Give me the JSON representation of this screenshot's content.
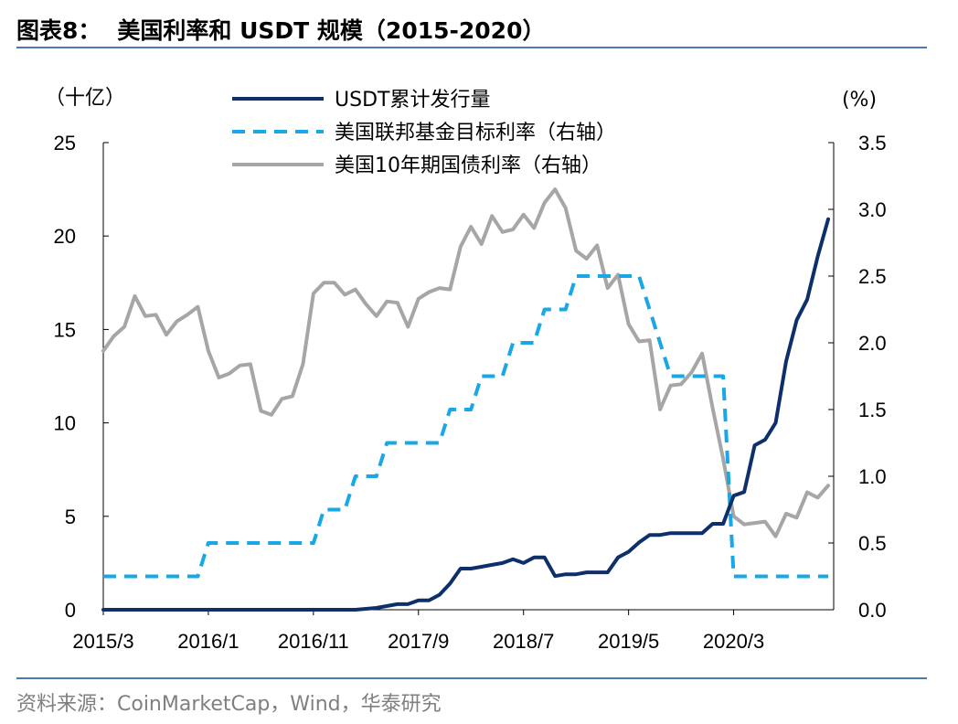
{
  "header": {
    "figure_label": "图表8：",
    "title": "美国利率和 USDT 规模（2015-2020）"
  },
  "footer": {
    "source": "资料来源：CoinMarketCap，Wind，华泰研究"
  },
  "colors": {
    "usdt": "#0d2f6b",
    "fed": "#1aa7e6",
    "treasury": "#a6a6a6",
    "rule": "#4a79b4"
  },
  "chart_data": {
    "type": "line",
    "left_axis": {
      "unit_label": "（十亿）",
      "ylim": [
        0,
        25
      ],
      "ticks": [
        "0",
        "5",
        "10",
        "15",
        "20",
        "25"
      ]
    },
    "right_axis": {
      "unit_label": "(%)",
      "ylim": [
        0,
        3.5
      ],
      "ticks": [
        "0.0",
        "0.5",
        "1.0",
        "1.5",
        "2.0",
        "2.5",
        "3.0",
        "3.5"
      ]
    },
    "x_tick_labels": [
      "2015/3",
      "2016/1",
      "2016/11",
      "2017/9",
      "2018/7",
      "2019/5",
      "2020/3"
    ],
    "x_range": [
      "2015/3",
      "2020/12"
    ],
    "grid": false,
    "legend_position": "top-center",
    "series": [
      {
        "name": "USDT累计发行量",
        "axis": "left",
        "style": "solid",
        "x": [
          "2015/3",
          "2017/3",
          "2017/5",
          "2017/7",
          "2017/8",
          "2017/9",
          "2017/10",
          "2017/11",
          "2017/12",
          "2018/1",
          "2018/2",
          "2018/3",
          "2018/4",
          "2018/5",
          "2018/6",
          "2018/7",
          "2018/8",
          "2018/9",
          "2018/10",
          "2018/11",
          "2018/12",
          "2019/1",
          "2019/2",
          "2019/3",
          "2019/4",
          "2019/5",
          "2019/6",
          "2019/7",
          "2019/8",
          "2019/9",
          "2019/10",
          "2019/11",
          "2019/12",
          "2020/1",
          "2020/2",
          "2020/3",
          "2020/4",
          "2020/5",
          "2020/6",
          "2020/7",
          "2020/8",
          "2020/9",
          "2020/10",
          "2020/11",
          "2020/12"
        ],
        "values": [
          0,
          0,
          0.1,
          0.3,
          0.3,
          0.5,
          0.5,
          0.8,
          1.4,
          2.2,
          2.2,
          2.3,
          2.4,
          2.5,
          2.7,
          2.5,
          2.8,
          2.8,
          1.8,
          1.9,
          1.9,
          2.0,
          2.0,
          2.0,
          2.8,
          3.1,
          3.6,
          4.0,
          4.0,
          4.1,
          4.1,
          4.1,
          4.1,
          4.6,
          4.6,
          6.1,
          6.3,
          8.8,
          9.1,
          10.0,
          13.3,
          15.5,
          16.6,
          18.9,
          20.9
        ]
      },
      {
        "name": "美国联邦基金目标利率（右轴）",
        "axis": "right",
        "style": "dashed",
        "x": [
          "2015/3",
          "2015/12",
          "2016/1",
          "2016/11",
          "2016/12",
          "2017/2",
          "2017/3",
          "2017/5",
          "2017/6",
          "2017/11",
          "2017/12",
          "2018/2",
          "2018/3",
          "2018/5",
          "2018/6",
          "2018/8",
          "2018/9",
          "2018/11",
          "2018/12",
          "2019/6",
          "2019/7",
          "2019/8",
          "2019/9",
          "2019/10",
          "2020/2",
          "2020/3",
          "2020/4",
          "2020/12"
        ],
        "values": [
          0.25,
          0.25,
          0.5,
          0.5,
          0.75,
          0.75,
          1.0,
          1.0,
          1.25,
          1.25,
          1.5,
          1.5,
          1.75,
          1.75,
          2.0,
          2.0,
          2.25,
          2.25,
          2.5,
          2.5,
          2.25,
          2.0,
          1.75,
          1.75,
          1.75,
          0.25,
          0.25,
          0.25
        ]
      },
      {
        "name": "美国10年期国债利率（右轴）",
        "axis": "right",
        "style": "solid",
        "x": [
          "2015/3",
          "2015/4",
          "2015/5",
          "2015/6",
          "2015/7",
          "2015/8",
          "2015/9",
          "2015/10",
          "2015/11",
          "2015/12",
          "2016/1",
          "2016/2",
          "2016/3",
          "2016/4",
          "2016/5",
          "2016/6",
          "2016/7",
          "2016/8",
          "2016/9",
          "2016/10",
          "2016/11",
          "2016/12",
          "2017/1",
          "2017/2",
          "2017/3",
          "2017/4",
          "2017/5",
          "2017/6",
          "2017/7",
          "2017/8",
          "2017/9",
          "2017/10",
          "2017/11",
          "2017/12",
          "2018/1",
          "2018/2",
          "2018/3",
          "2018/4",
          "2018/5",
          "2018/6",
          "2018/7",
          "2018/8",
          "2018/9",
          "2018/10",
          "2018/11",
          "2018/12",
          "2019/1",
          "2019/2",
          "2019/3",
          "2019/4",
          "2019/5",
          "2019/6",
          "2019/7",
          "2019/8",
          "2019/9",
          "2019/10",
          "2019/11",
          "2019/12",
          "2020/1",
          "2020/2",
          "2020/3",
          "2020/4",
          "2020/5",
          "2020/6",
          "2020/7",
          "2020/8",
          "2020/9",
          "2020/10",
          "2020/11",
          "2020/12"
        ],
        "values": [
          1.94,
          2.05,
          2.12,
          2.35,
          2.2,
          2.21,
          2.06,
          2.16,
          2.21,
          2.27,
          1.94,
          1.74,
          1.77,
          1.83,
          1.84,
          1.49,
          1.46,
          1.58,
          1.6,
          1.84,
          2.37,
          2.45,
          2.45,
          2.36,
          2.4,
          2.29,
          2.2,
          2.31,
          2.3,
          2.12,
          2.33,
          2.38,
          2.41,
          2.4,
          2.72,
          2.87,
          2.74,
          2.95,
          2.83,
          2.85,
          2.96,
          2.86,
          3.05,
          3.15,
          3.01,
          2.69,
          2.63,
          2.73,
          2.41,
          2.51,
          2.14,
          2.01,
          2.02,
          1.5,
          1.68,
          1.69,
          1.78,
          1.92,
          1.51,
          1.13,
          0.7,
          0.64,
          0.65,
          0.66,
          0.55,
          0.72,
          0.69,
          0.88,
          0.84,
          0.93
        ]
      }
    ]
  }
}
